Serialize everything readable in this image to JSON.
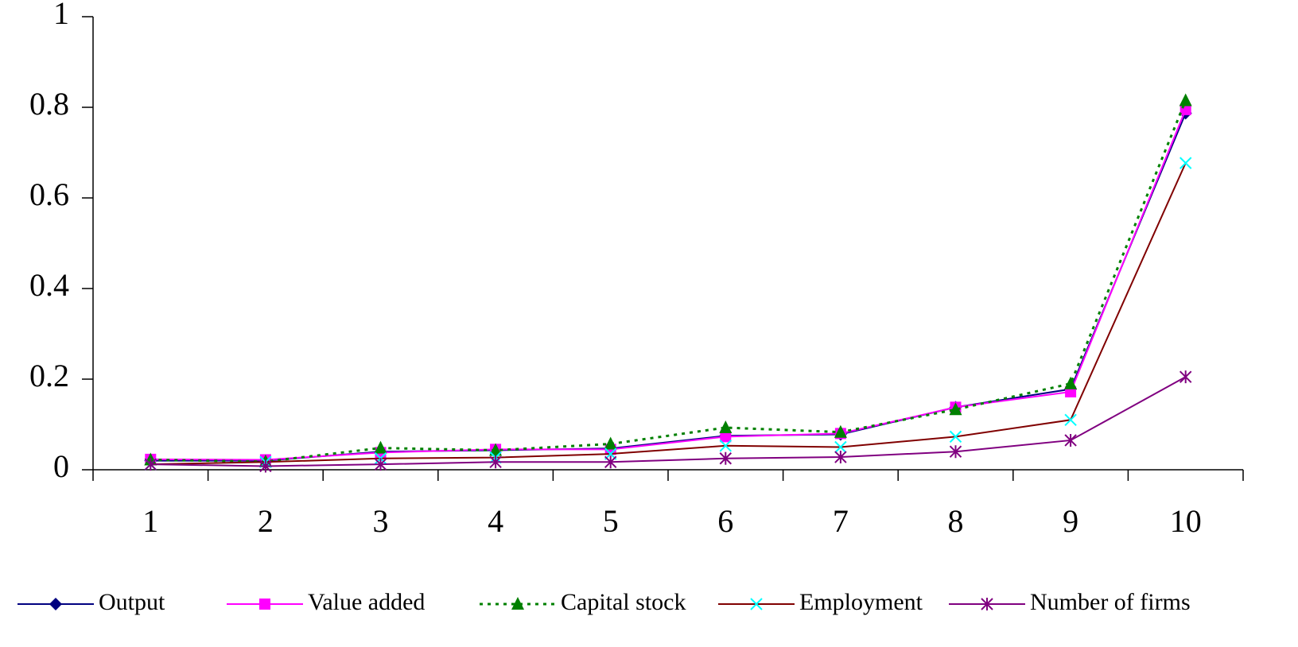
{
  "chart_data": {
    "type": "line",
    "categories": [
      "1",
      "2",
      "3",
      "4",
      "5",
      "6",
      "7",
      "8",
      "9",
      "10"
    ],
    "ylim": [
      0,
      1
    ],
    "yticks": [
      0,
      0.2,
      0.4,
      0.6,
      0.8,
      1
    ],
    "legend": "bottom",
    "series": [
      {
        "name": "Output",
        "color": "#000080",
        "marker": "diamond",
        "marker_color": "#000080",
        "dash": "solid",
        "values": [
          0.02,
          0.02,
          0.04,
          0.043,
          0.047,
          0.075,
          0.078,
          0.138,
          0.178,
          0.787
        ]
      },
      {
        "name": "Value added",
        "color": "#ff00ff",
        "marker": "square",
        "marker_color": "#ff00ff",
        "dash": "solid",
        "values": [
          0.023,
          0.022,
          0.038,
          0.045,
          0.045,
          0.073,
          0.08,
          0.138,
          0.172,
          0.795
        ]
      },
      {
        "name": "Capital stock",
        "color": "#008000",
        "marker": "triangle",
        "marker_color": "#008000",
        "dash": "dotted",
        "values": [
          0.022,
          0.018,
          0.048,
          0.043,
          0.057,
          0.093,
          0.083,
          0.133,
          0.19,
          0.815
        ]
      },
      {
        "name": "Employment",
        "color": "#800000",
        "marker": "x",
        "marker_color": "#00ffff",
        "dash": "solid",
        "values": [
          0.012,
          0.017,
          0.025,
          0.027,
          0.035,
          0.053,
          0.05,
          0.073,
          0.11,
          0.677
        ]
      },
      {
        "name": "Number of firms",
        "color": "#800080",
        "marker": "star",
        "marker_color": "#800080",
        "dash": "solid",
        "values": [
          0.012,
          0.008,
          0.012,
          0.017,
          0.017,
          0.025,
          0.028,
          0.04,
          0.065,
          0.205
        ]
      }
    ]
  }
}
